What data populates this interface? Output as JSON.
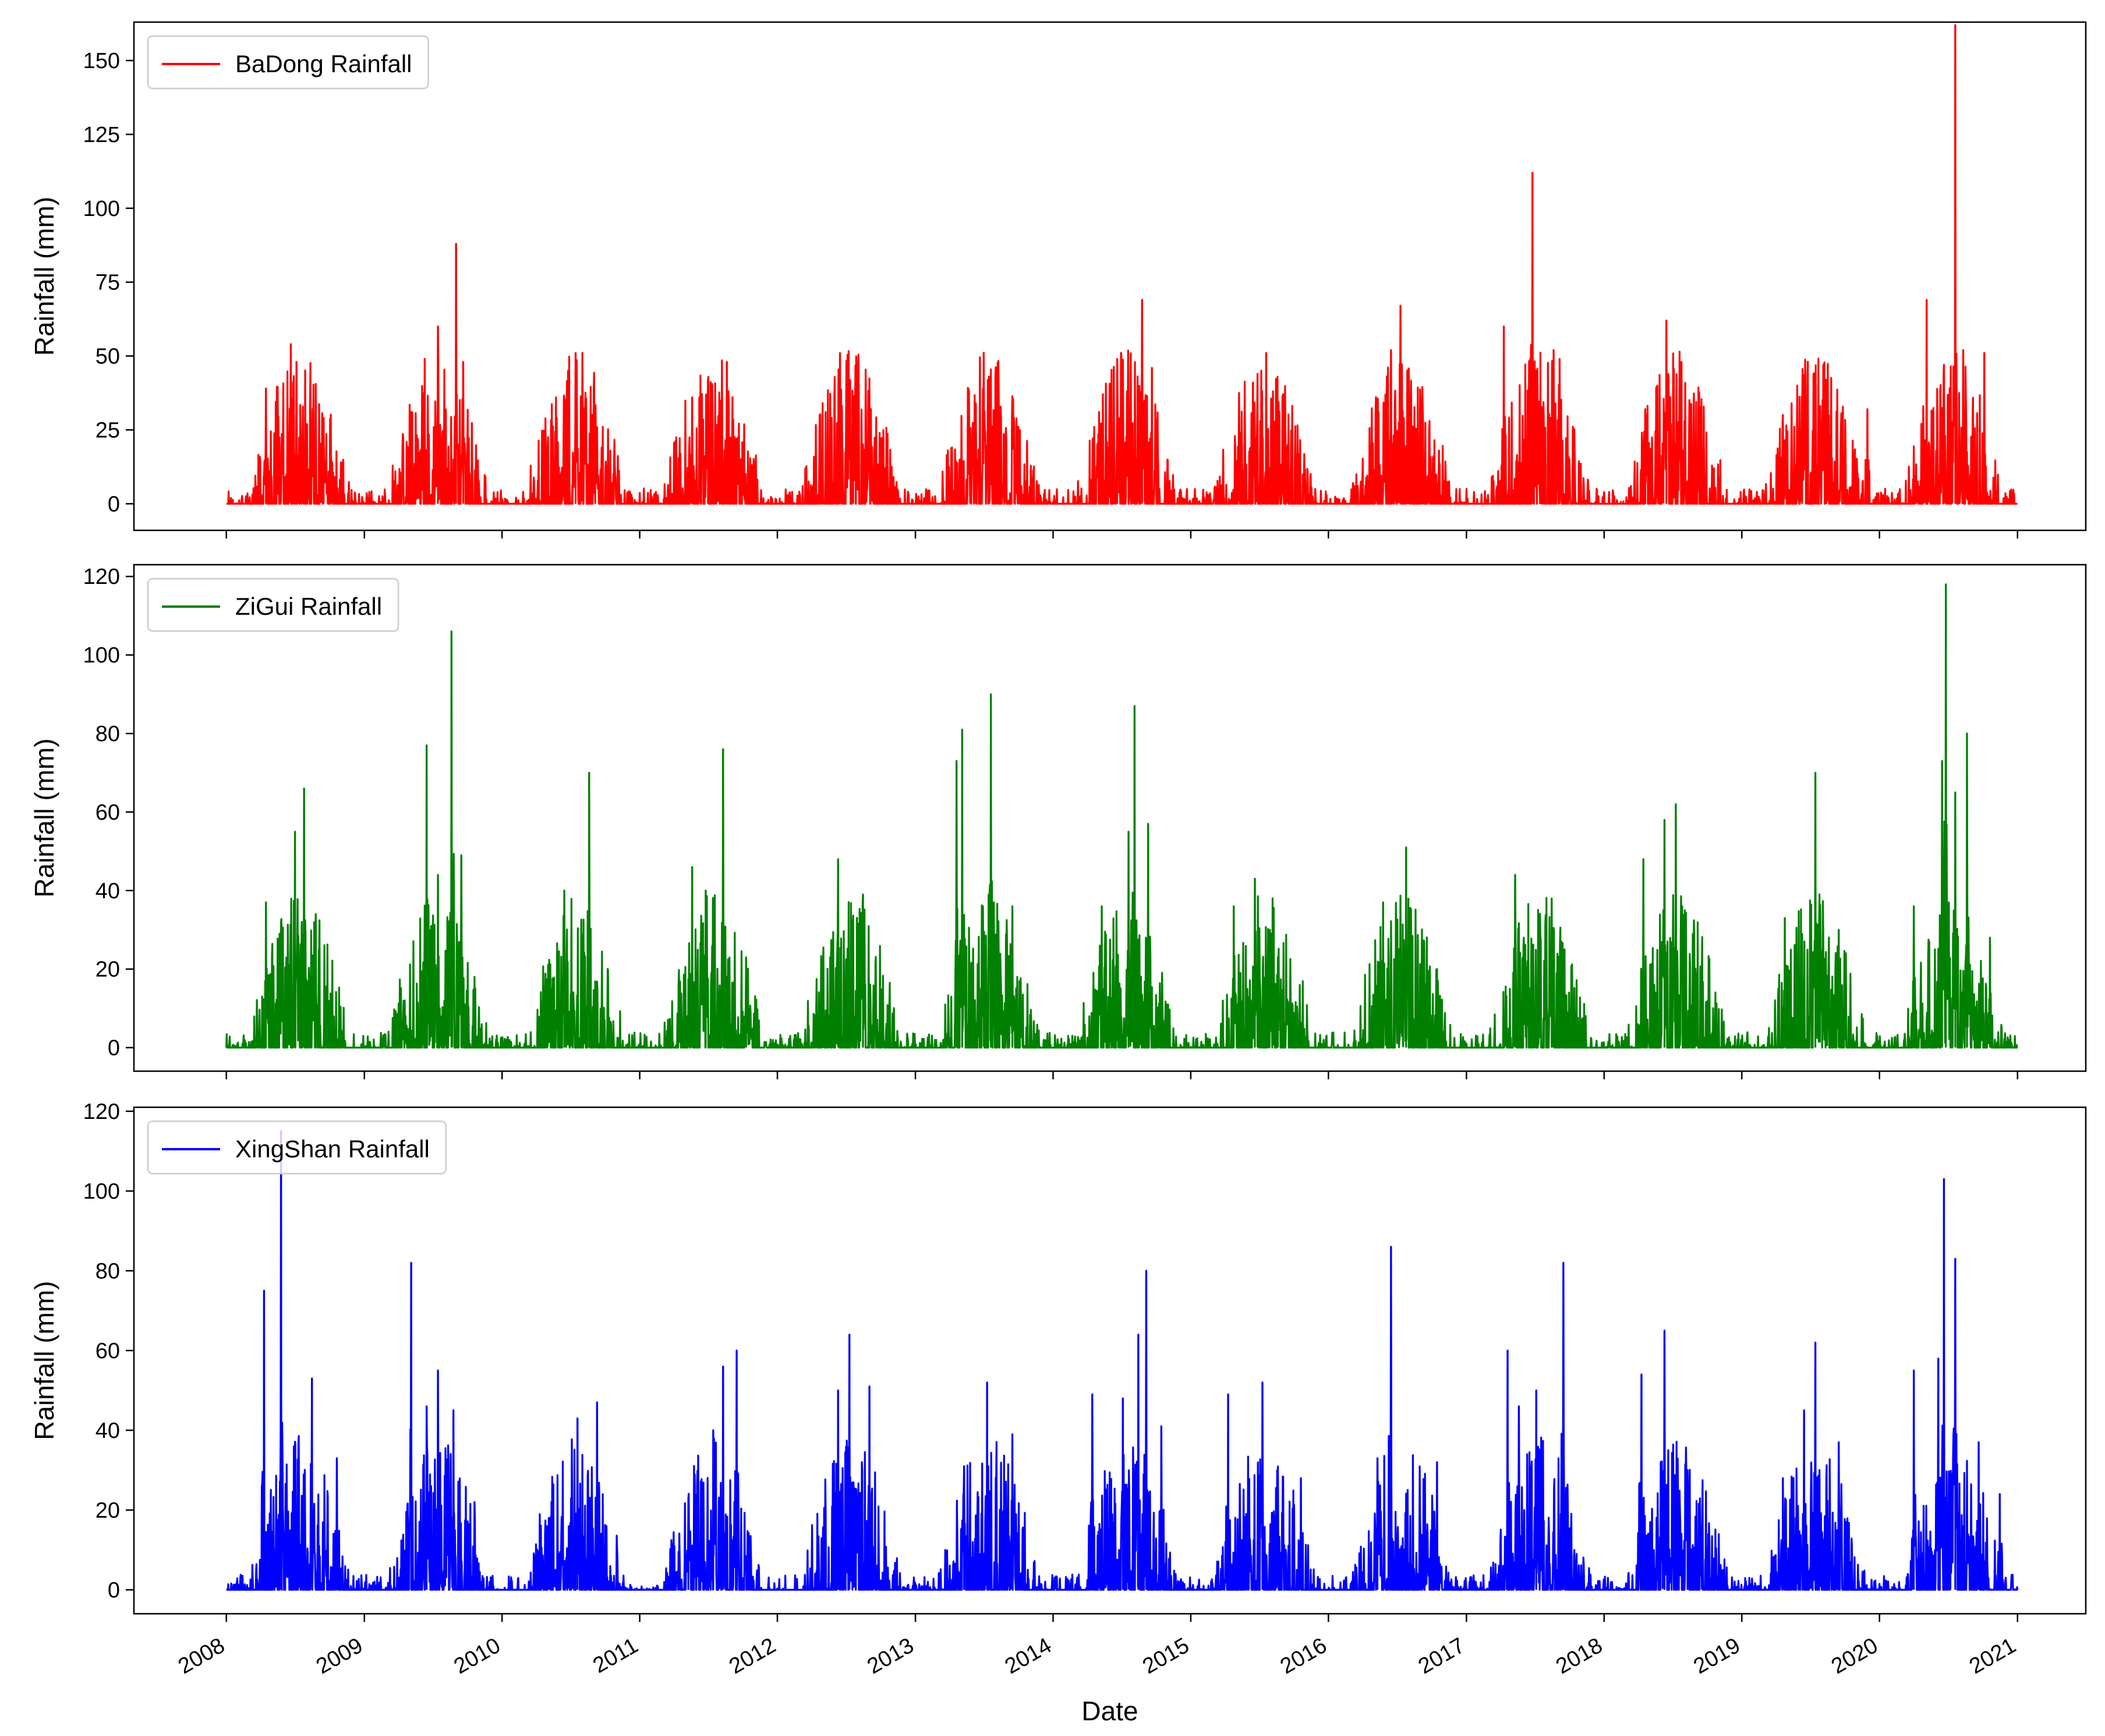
{
  "chart_data": [
    {
      "type": "line",
      "series": [
        {
          "name": "BaDong Rainfall",
          "color": "#ff0000",
          "peaks": [
            {
              "x": "2008-04-15",
              "y": 39
            },
            {
              "x": "2008-06-20",
              "y": 54
            },
            {
              "x": "2008-07-05",
              "y": 48
            },
            {
              "x": "2008-08-10",
              "y": 34
            },
            {
              "x": "2008-09-15",
              "y": 29
            },
            {
              "x": "2009-06-10",
              "y": 49
            },
            {
              "x": "2009-07-15",
              "y": 60
            },
            {
              "x": "2009-09-01",
              "y": 88
            },
            {
              "x": "2009-09-20",
              "y": 48
            },
            {
              "x": "2010-07-15",
              "y": 51
            },
            {
              "x": "2010-09-05",
              "y": 31
            },
            {
              "x": "2010-10-15",
              "y": 18
            },
            {
              "x": "2011-05-20",
              "y": 36
            },
            {
              "x": "2011-07-01",
              "y": 42
            },
            {
              "x": "2011-08-20",
              "y": 48
            },
            {
              "x": "2011-09-15",
              "y": 22
            },
            {
              "x": "2012-06-15",
              "y": 51
            },
            {
              "x": "2012-07-20",
              "y": 29
            },
            {
              "x": "2012-08-20",
              "y": 18
            },
            {
              "x": "2013-06-10",
              "y": 34
            },
            {
              "x": "2013-07-15",
              "y": 43
            },
            {
              "x": "2013-09-20",
              "y": 27
            },
            {
              "x": "2014-04-20",
              "y": 26
            },
            {
              "x": "2014-06-20",
              "y": 49
            },
            {
              "x": "2014-08-25",
              "y": 69
            },
            {
              "x": "2014-09-20",
              "y": 46
            },
            {
              "x": "2015-06-15",
              "y": 41
            },
            {
              "x": "2015-07-20",
              "y": 51
            },
            {
              "x": "2015-09-15",
              "y": 20
            },
            {
              "x": "2016-06-15",
              "y": 52
            },
            {
              "x": "2016-07-10",
              "y": 67
            },
            {
              "x": "2016-10-20",
              "y": 18
            },
            {
              "x": "2017-04-10",
              "y": 60
            },
            {
              "x": "2017-06-25",
              "y": 112
            },
            {
              "x": "2017-08-20",
              "y": 52
            },
            {
              "x": "2017-09-05",
              "y": 49
            },
            {
              "x": "2018-04-20",
              "y": 32
            },
            {
              "x": "2018-06-15",
              "y": 62
            },
            {
              "x": "2018-07-25",
              "y": 48
            },
            {
              "x": "2019-06-10",
              "y": 32
            },
            {
              "x": "2019-08-20",
              "y": 30
            },
            {
              "x": "2019-11-30",
              "y": 32
            },
            {
              "x": "2020-05-05",
              "y": 69
            },
            {
              "x": "2020-06-20",
              "y": 47
            },
            {
              "x": "2020-07-20",
              "y": 162
            },
            {
              "x": "2020-08-10",
              "y": 52
            },
            {
              "x": "2020-10-05",
              "y": 51
            }
          ]
        }
      ],
      "xlabel": "",
      "ylabel": "Rainfall (mm)",
      "ylim": [
        -9,
        163
      ],
      "yticks": [
        0,
        25,
        50,
        75,
        100,
        125,
        150
      ],
      "legend": "top-left"
    },
    {
      "type": "line",
      "series": [
        {
          "name": "ZiGui Rainfall",
          "color": "#008000",
          "peaks": [
            {
              "x": "2008-04-15",
              "y": 37
            },
            {
              "x": "2008-07-01",
              "y": 55
            },
            {
              "x": "2008-07-25",
              "y": 66
            },
            {
              "x": "2008-08-25",
              "y": 34
            },
            {
              "x": "2009-06-15",
              "y": 77
            },
            {
              "x": "2009-07-15",
              "y": 44
            },
            {
              "x": "2009-08-20",
              "y": 106
            },
            {
              "x": "2009-09-15",
              "y": 49
            },
            {
              "x": "2010-06-15",
              "y": 40
            },
            {
              "x": "2010-08-20",
              "y": 70
            },
            {
              "x": "2011-05-20",
              "y": 46
            },
            {
              "x": "2011-06-25",
              "y": 40
            },
            {
              "x": "2011-08-10",
              "y": 76
            },
            {
              "x": "2011-10-10",
              "y": 23
            },
            {
              "x": "2012-06-10",
              "y": 48
            },
            {
              "x": "2012-08-15",
              "y": 39
            },
            {
              "x": "2013-04-20",
              "y": 73
            },
            {
              "x": "2013-05-05",
              "y": 81
            },
            {
              "x": "2013-07-20",
              "y": 90
            },
            {
              "x": "2013-09-15",
              "y": 36
            },
            {
              "x": "2014-05-10",
              "y": 36
            },
            {
              "x": "2014-07-20",
              "y": 55
            },
            {
              "x": "2014-08-05",
              "y": 87
            },
            {
              "x": "2014-09-10",
              "y": 57
            },
            {
              "x": "2015-04-25",
              "y": 36
            },
            {
              "x": "2015-06-20",
              "y": 43
            },
            {
              "x": "2015-08-20",
              "y": 23
            },
            {
              "x": "2016-05-25",
              "y": 37
            },
            {
              "x": "2016-07-25",
              "y": 51
            },
            {
              "x": "2016-10-15",
              "y": 20
            },
            {
              "x": "2017-05-10",
              "y": 44
            },
            {
              "x": "2017-08-15",
              "y": 38
            },
            {
              "x": "2017-09-10",
              "y": 27
            },
            {
              "x": "2018-04-15",
              "y": 48
            },
            {
              "x": "2018-06-10",
              "y": 58
            },
            {
              "x": "2018-07-10",
              "y": 62
            },
            {
              "x": "2019-04-25",
              "y": 33
            },
            {
              "x": "2019-07-15",
              "y": 70
            },
            {
              "x": "2019-09-15",
              "y": 30
            },
            {
              "x": "2020-04-01",
              "y": 36
            },
            {
              "x": "2020-06-15",
              "y": 73
            },
            {
              "x": "2020-06-25",
              "y": 118
            },
            {
              "x": "2020-07-20",
              "y": 65
            },
            {
              "x": "2020-08-20",
              "y": 80
            },
            {
              "x": "2020-10-20",
              "y": 28
            }
          ]
        }
      ],
      "xlabel": "",
      "ylabel": "Rainfall (mm)",
      "ylim": [
        -6,
        123
      ],
      "yticks": [
        0,
        20,
        40,
        60,
        80,
        100,
        120
      ],
      "legend": "top-left"
    },
    {
      "type": "line",
      "series": [
        {
          "name": "XingShan Rainfall",
          "color": "#0000ff",
          "peaks": [
            {
              "x": "2008-04-10",
              "y": 75
            },
            {
              "x": "2008-05-25",
              "y": 115
            },
            {
              "x": "2008-08-15",
              "y": 53
            },
            {
              "x": "2008-10-20",
              "y": 33
            },
            {
              "x": "2009-05-05",
              "y": 82
            },
            {
              "x": "2009-06-15",
              "y": 46
            },
            {
              "x": "2009-07-15",
              "y": 55
            },
            {
              "x": "2009-08-25",
              "y": 45
            },
            {
              "x": "2009-10-20",
              "y": 22
            },
            {
              "x": "2010-05-05",
              "y": 18
            },
            {
              "x": "2010-07-20",
              "y": 43
            },
            {
              "x": "2010-09-10",
              "y": 47
            },
            {
              "x": "2011-05-10",
              "y": 23
            },
            {
              "x": "2011-07-15",
              "y": 40
            },
            {
              "x": "2011-08-10",
              "y": 56
            },
            {
              "x": "2011-09-15",
              "y": 60
            },
            {
              "x": "2012-06-10",
              "y": 50
            },
            {
              "x": "2012-07-10",
              "y": 64
            },
            {
              "x": "2012-09-01",
              "y": 51
            },
            {
              "x": "2013-05-10",
              "y": 31
            },
            {
              "x": "2013-07-10",
              "y": 52
            },
            {
              "x": "2013-09-15",
              "y": 39
            },
            {
              "x": "2014-04-15",
              "y": 49
            },
            {
              "x": "2014-07-05",
              "y": 48
            },
            {
              "x": "2014-08-15",
              "y": 64
            },
            {
              "x": "2014-09-05",
              "y": 80
            },
            {
              "x": "2014-10-15",
              "y": 41
            },
            {
              "x": "2015-04-10",
              "y": 49
            },
            {
              "x": "2015-07-10",
              "y": 52
            },
            {
              "x": "2015-10-20",
              "y": 28
            },
            {
              "x": "2016-05-10",
              "y": 33
            },
            {
              "x": "2016-06-15",
              "y": 86
            },
            {
              "x": "2016-10-15",
              "y": 32
            },
            {
              "x": "2017-04-20",
              "y": 60
            },
            {
              "x": "2017-05-20",
              "y": 46
            },
            {
              "x": "2017-07-05",
              "y": 50
            },
            {
              "x": "2017-09-15",
              "y": 82
            },
            {
              "x": "2018-04-10",
              "y": 54
            },
            {
              "x": "2018-06-10",
              "y": 65
            },
            {
              "x": "2018-08-10",
              "y": 30
            },
            {
              "x": "2019-04-20",
              "y": 28
            },
            {
              "x": "2019-06-15",
              "y": 45
            },
            {
              "x": "2019-07-15",
              "y": 62
            },
            {
              "x": "2019-09-15",
              "y": 37
            },
            {
              "x": "2020-04-01",
              "y": 55
            },
            {
              "x": "2020-06-05",
              "y": 58
            },
            {
              "x": "2020-06-20",
              "y": 103
            },
            {
              "x": "2020-07-20",
              "y": 83
            },
            {
              "x": "2020-09-20",
              "y": 37
            },
            {
              "x": "2020-11-15",
              "y": 24
            }
          ]
        }
      ],
      "xlabel": "Date",
      "ylabel": "Rainfall (mm)",
      "ylim": [
        -6,
        121
      ],
      "yticks": [
        0,
        20,
        40,
        60,
        80,
        100,
        120
      ],
      "legend": "top-left"
    }
  ],
  "x_axis": {
    "range": [
      "2007-05-01",
      "2021-07-01"
    ],
    "ticks": [
      "2008-01-01",
      "2009-01-01",
      "2010-01-01",
      "2011-01-01",
      "2012-01-01",
      "2013-01-01",
      "2014-01-01",
      "2015-01-01",
      "2016-01-01",
      "2017-01-01",
      "2018-01-01",
      "2019-01-01",
      "2020-01-01",
      "2021-01-01"
    ],
    "tick_labels": [
      "2008",
      "2009",
      "2010",
      "2011",
      "2012",
      "2013",
      "2014",
      "2015",
      "2016",
      "2017",
      "2018",
      "2019",
      "2020",
      "2021"
    ]
  }
}
